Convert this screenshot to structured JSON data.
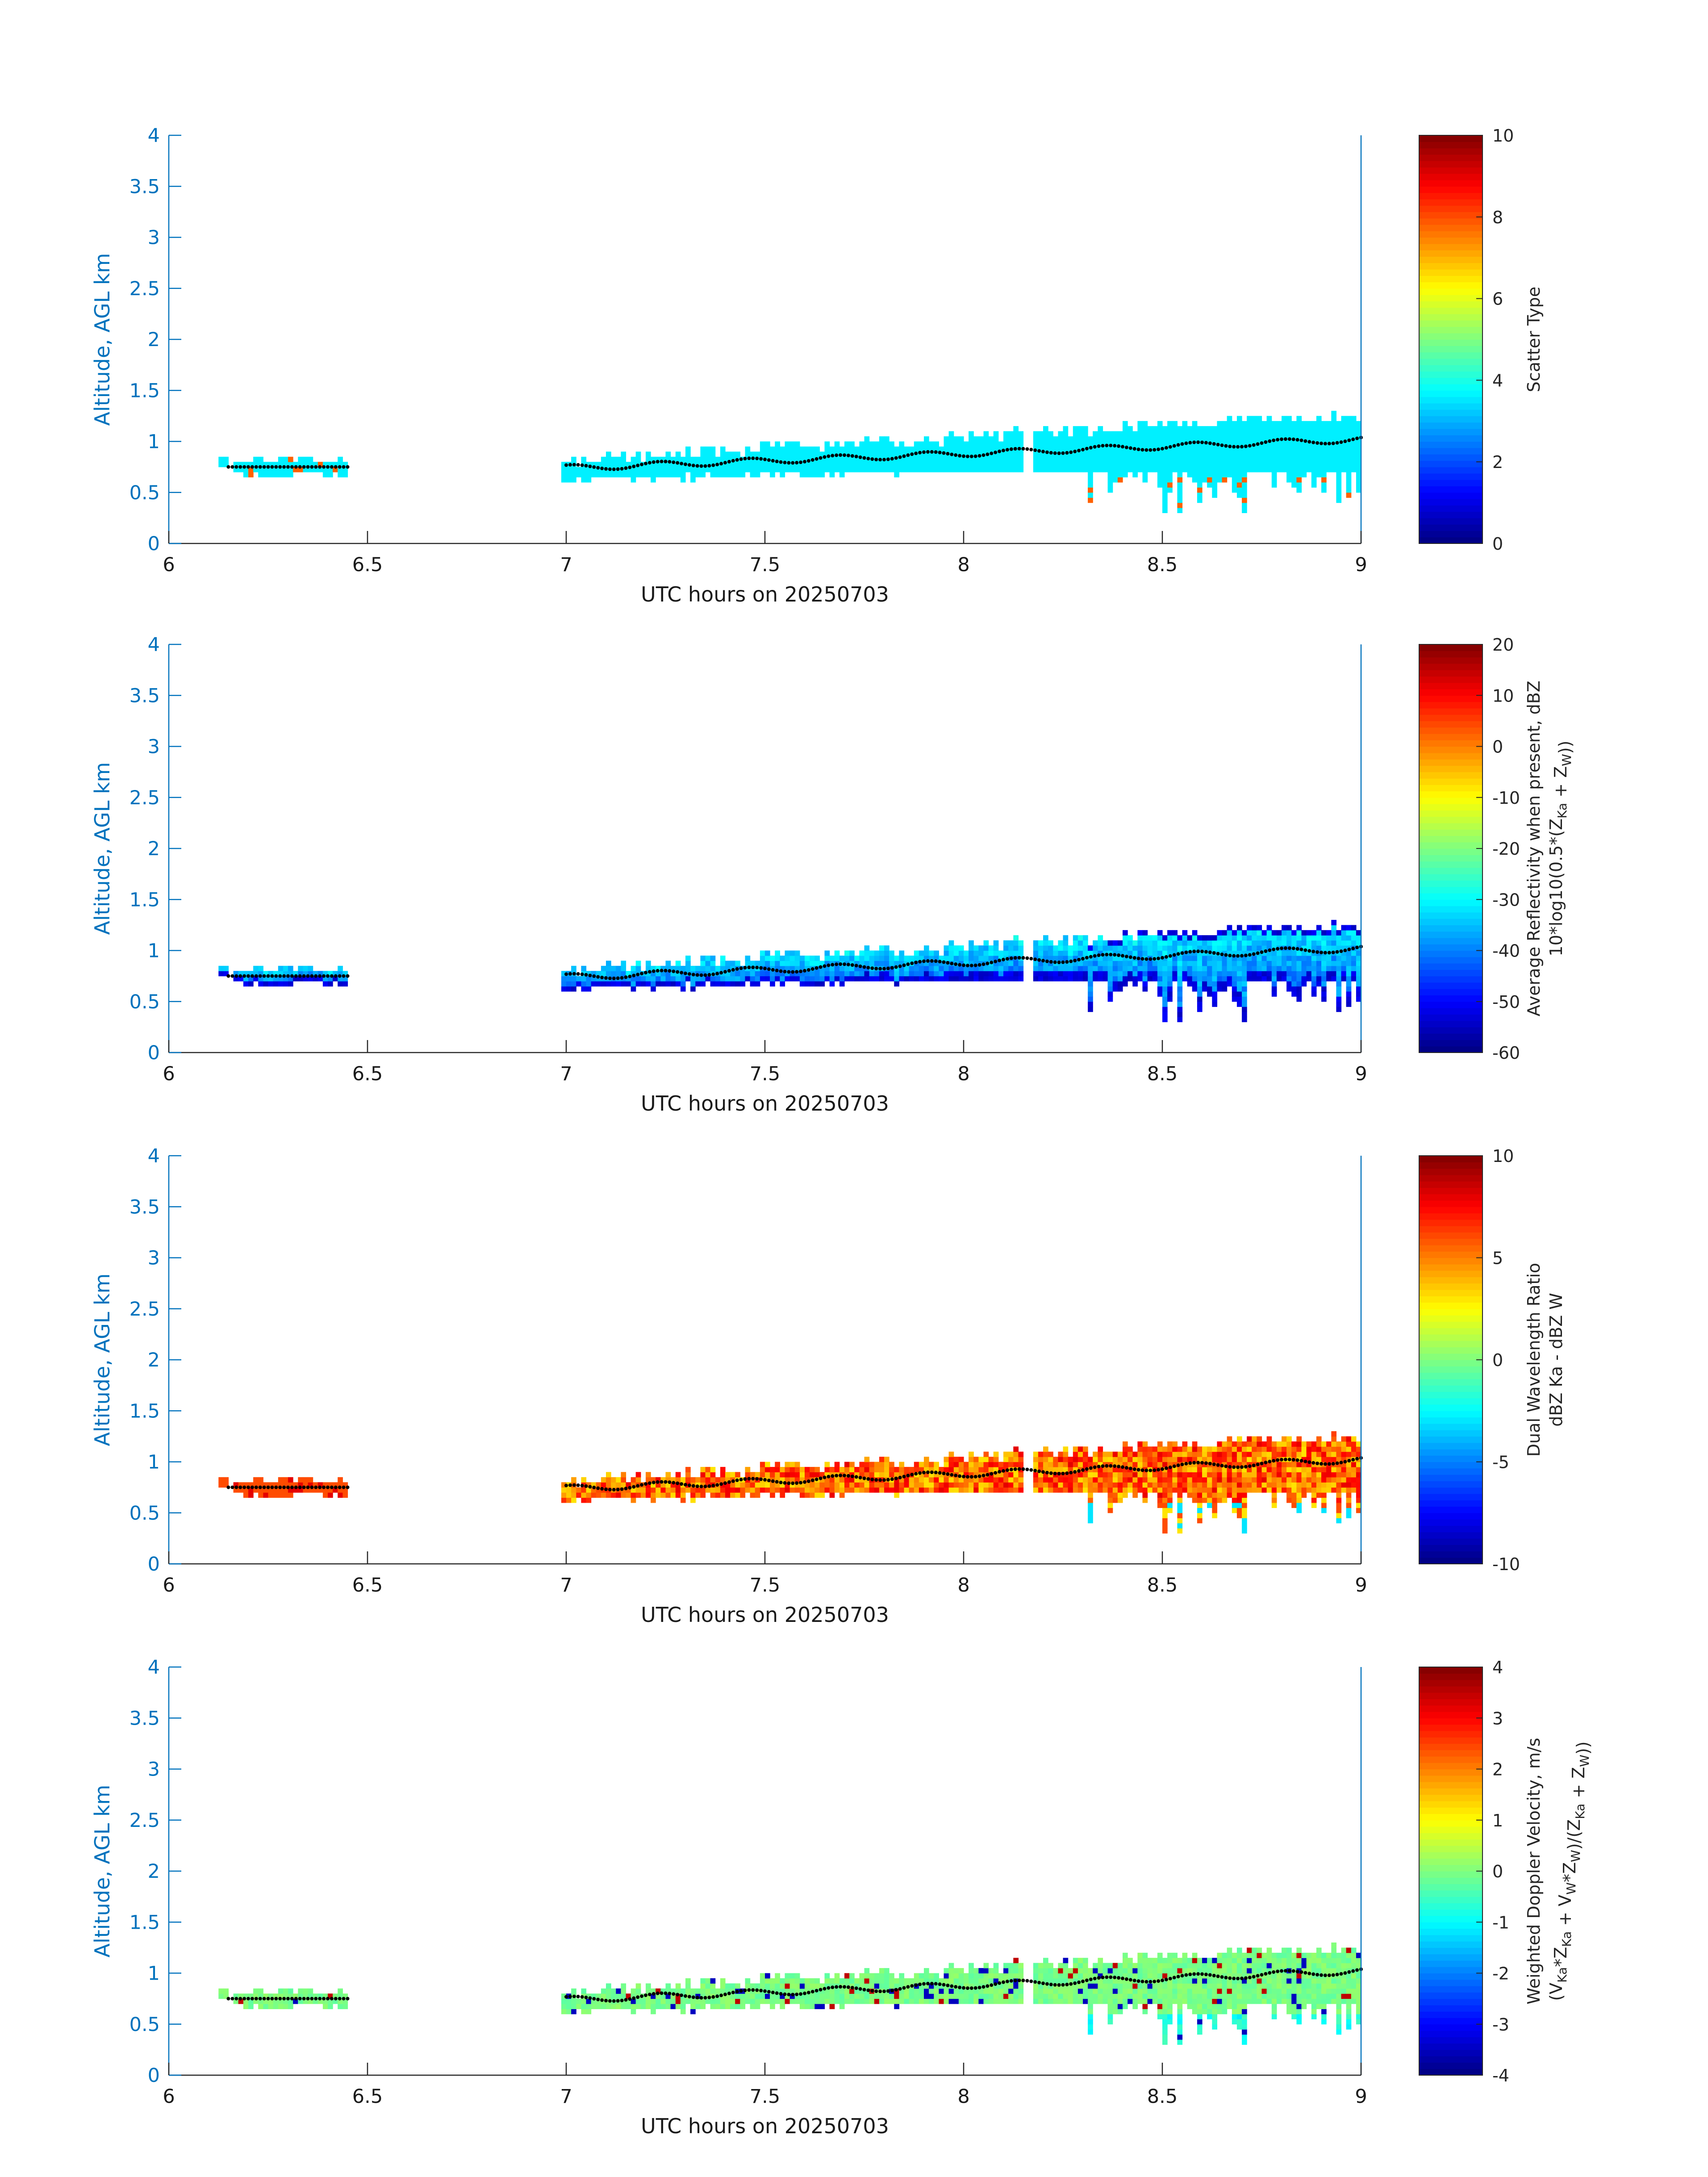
{
  "colors": {
    "axis_y": "#0072bd",
    "axis_x": "#262626",
    "marker": "#000000"
  },
  "chart_data": [
    {
      "type": "heatmap",
      "xlabel": "UTC hours on 20250703",
      "ylabel": "Altitude, AGL km",
      "xlim": [
        6,
        9
      ],
      "ylim": [
        0,
        4
      ],
      "xticks": [
        "6",
        "6.5",
        "7",
        "7.5",
        "8",
        "8.5",
        "9"
      ],
      "yticks": [
        "0",
        "0.5",
        "1",
        "1.5",
        "2",
        "2.5",
        "3",
        "3.5",
        "4"
      ],
      "colorbar": {
        "label_lines": [
          "Scatter Type"
        ],
        "clim": [
          0,
          10
        ],
        "ticks": [
          "0",
          "2",
          "4",
          "6",
          "8",
          "10"
        ],
        "colormap": "jet"
      },
      "field": "scatter_type",
      "cloud_base_dots": true
    },
    {
      "type": "heatmap",
      "xlabel": "UTC hours on 20250703",
      "ylabel": "Altitude, AGL km",
      "xlim": [
        6,
        9
      ],
      "ylim": [
        0,
        4
      ],
      "xticks": [
        "6",
        "6.5",
        "7",
        "7.5",
        "8",
        "8.5",
        "9"
      ],
      "yticks": [
        "0",
        "0.5",
        "1",
        "1.5",
        "2",
        "2.5",
        "3",
        "3.5",
        "4"
      ],
      "colorbar": {
        "label_lines": [
          "Average Reflectivity when present, dBZ",
          "10*log10(0.5*(Z_Ka + Z_W))"
        ],
        "clim": [
          -60,
          20
        ],
        "ticks": [
          "-60",
          "-50",
          "-40",
          "-30",
          "-20",
          "-10",
          "0",
          "10",
          "20"
        ],
        "colormap": "jet"
      },
      "field": "reflectivity",
      "cloud_base_dots": true
    },
    {
      "type": "heatmap",
      "xlabel": "UTC hours on 20250703",
      "ylabel": "Altitude, AGL km",
      "xlim": [
        6,
        9
      ],
      "ylim": [
        0,
        4
      ],
      "xticks": [
        "6",
        "6.5",
        "7",
        "7.5",
        "8",
        "8.5",
        "9"
      ],
      "yticks": [
        "0",
        "0.5",
        "1",
        "1.5",
        "2",
        "2.5",
        "3",
        "3.5",
        "4"
      ],
      "colorbar": {
        "label_lines": [
          "Dual Wavelength Ratio",
          "dBZ Ka - dBZ W"
        ],
        "clim": [
          -10,
          10
        ],
        "ticks": [
          "-10",
          "-5",
          "0",
          "5",
          "10"
        ],
        "colormap": "jet"
      },
      "field": "dwr",
      "cloud_base_dots": true
    },
    {
      "type": "heatmap",
      "xlabel": "UTC hours on 20250703",
      "ylabel": "Altitude, AGL km",
      "xlim": [
        6,
        9
      ],
      "ylim": [
        0,
        4
      ],
      "xticks": [
        "6",
        "6.5",
        "7",
        "7.5",
        "8",
        "8.5",
        "9"
      ],
      "yticks": [
        "0",
        "0.5",
        "1",
        "1.5",
        "2",
        "2.5",
        "3",
        "3.5",
        "4"
      ],
      "colorbar": {
        "label_lines": [
          "Weighted Doppler Velocity, m/s",
          "(V_Ka*Z_Ka + V_W*Z_W)/(Z_Ka + Z_W))"
        ],
        "clim": [
          -4,
          4
        ],
        "ticks": [
          "-4",
          "-3",
          "-2",
          "-1",
          "0",
          "1",
          "2",
          "3",
          "4"
        ],
        "colormap": "jet"
      },
      "field": "doppler",
      "cloud_base_dots": true
    }
  ]
}
